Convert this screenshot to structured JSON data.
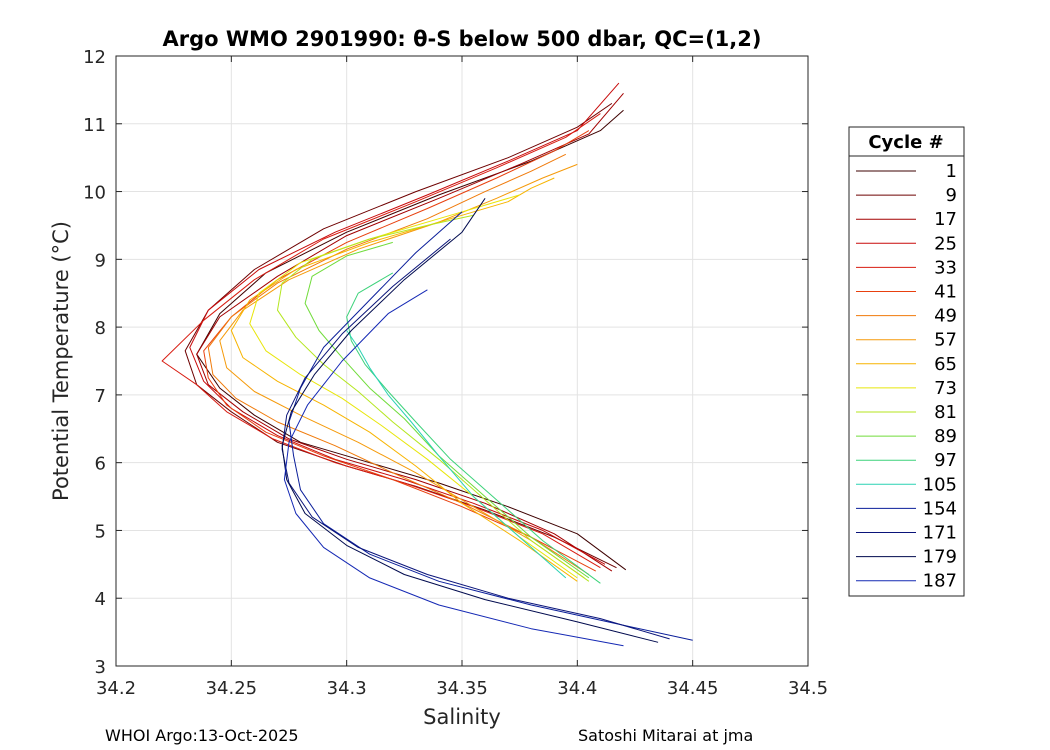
{
  "chart_data": {
    "type": "line",
    "title": "Argo WMO 2901990: θ-S below 500 dbar,  QC=(1,2)",
    "xlabel": "Salinity",
    "ylabel": "Potential Temperature (°C)",
    "xlim": [
      34.2,
      34.5
    ],
    "ylim": [
      3,
      12
    ],
    "xticks": [
      "34.2",
      "34.25",
      "34.3",
      "34.35",
      "34.4",
      "34.45",
      "34.5"
    ],
    "yticks": [
      "3",
      "4",
      "5",
      "6",
      "7",
      "8",
      "9",
      "10",
      "11",
      "12"
    ],
    "grid": true,
    "legend": {
      "title": "Cycle #",
      "placement": "outside-right",
      "entries": [
        "1",
        "9",
        "17",
        "25",
        "33",
        "41",
        "49",
        "57",
        "65",
        "73",
        "81",
        "89",
        "97",
        "105",
        "154",
        "171",
        "179",
        "187"
      ],
      "colors": [
        "#3d0000",
        "#6e0000",
        "#a30000",
        "#c80a0a",
        "#d81b10",
        "#e8400e",
        "#f07a0a",
        "#f59a0a",
        "#f7b400",
        "#e8e60a",
        "#b4e61e",
        "#70dc3a",
        "#3cd27a",
        "#2ad2b4",
        "#0a1e9a",
        "#0a147a",
        "#000a4e",
        "#1428b4"
      ]
    },
    "series": [
      {
        "name": "1",
        "salinity": [
          34.421,
          34.4,
          34.37,
          34.34,
          34.31,
          34.28,
          34.26,
          34.245,
          34.235,
          34.245,
          34.265,
          34.3,
          34.34,
          34.38,
          34.41,
          34.42
        ],
        "temperature": [
          4.42,
          4.95,
          5.35,
          5.7,
          6.0,
          6.3,
          6.7,
          7.1,
          7.6,
          8.2,
          8.8,
          9.4,
          9.95,
          10.45,
          10.9,
          11.2
        ]
      },
      {
        "name": "9",
        "salinity": [
          34.417,
          34.39,
          34.36,
          34.33,
          34.3,
          34.27,
          34.25,
          34.235,
          34.23,
          34.24,
          34.26,
          34.29,
          34.33,
          34.37,
          34.4,
          34.415
        ],
        "temperature": [
          4.45,
          4.9,
          5.3,
          5.65,
          5.95,
          6.3,
          6.75,
          7.15,
          7.65,
          8.25,
          8.85,
          9.45,
          10.0,
          10.5,
          10.95,
          11.3
        ]
      },
      {
        "name": "17",
        "salinity": [
          34.415,
          34.39,
          34.36,
          34.33,
          34.3,
          34.275,
          34.255,
          34.24,
          34.235,
          34.245,
          34.27,
          34.3,
          34.34,
          34.375,
          34.405,
          34.42
        ],
        "temperature": [
          4.4,
          4.95,
          5.4,
          5.75,
          6.05,
          6.35,
          6.75,
          7.15,
          7.6,
          8.15,
          8.75,
          9.35,
          9.9,
          10.4,
          10.85,
          11.45
        ]
      },
      {
        "name": "25",
        "salinity": [
          34.412,
          34.385,
          34.355,
          34.325,
          34.295,
          34.27,
          34.25,
          34.238,
          34.232,
          34.24,
          34.262,
          34.295,
          34.335,
          34.37,
          34.4,
          34.418
        ],
        "temperature": [
          4.5,
          5.0,
          5.4,
          5.75,
          6.05,
          6.4,
          6.8,
          7.2,
          7.7,
          8.25,
          8.85,
          9.4,
          9.95,
          10.45,
          10.9,
          11.6
        ]
      },
      {
        "name": "33",
        "salinity": [
          34.41,
          34.385,
          34.355,
          34.325,
          34.295,
          34.268,
          34.248,
          34.235,
          34.22,
          34.238,
          34.26,
          34.29,
          34.33,
          34.365,
          34.395,
          34.41
        ],
        "temperature": [
          4.45,
          4.95,
          5.35,
          5.7,
          6.0,
          6.35,
          6.75,
          7.15,
          7.5,
          8.1,
          8.7,
          9.3,
          9.85,
          10.35,
          10.8,
          11.15
        ]
      },
      {
        "name": "41",
        "salinity": [
          34.408,
          34.38,
          34.35,
          34.32,
          34.29,
          34.265,
          34.248,
          34.24,
          34.238,
          34.25,
          34.27,
          34.3,
          34.335,
          34.365,
          34.39,
          34.405
        ],
        "temperature": [
          4.4,
          4.9,
          5.35,
          5.75,
          6.1,
          6.45,
          6.85,
          7.25,
          7.65,
          8.15,
          8.7,
          9.25,
          9.75,
          10.2,
          10.6,
          10.9
        ]
      },
      {
        "name": "49",
        "salinity": [
          34.405,
          34.38,
          34.35,
          34.32,
          34.295,
          34.27,
          34.252,
          34.242,
          34.24,
          34.25,
          34.27,
          34.3,
          34.335,
          34.36,
          34.38,
          34.395
        ],
        "temperature": [
          4.35,
          4.9,
          5.4,
          5.85,
          6.25,
          6.6,
          6.95,
          7.3,
          7.7,
          8.15,
          8.65,
          9.15,
          9.6,
          10.0,
          10.3,
          10.55
        ]
      },
      {
        "name": "57",
        "salinity": [
          34.403,
          34.38,
          34.355,
          34.33,
          34.305,
          34.28,
          34.26,
          34.248,
          34.245,
          34.255,
          34.275,
          34.305,
          34.34,
          34.365,
          34.385,
          34.4
        ],
        "temperature": [
          4.3,
          4.85,
          5.35,
          5.85,
          6.3,
          6.7,
          7.05,
          7.4,
          7.8,
          8.25,
          8.7,
          9.15,
          9.55,
          9.9,
          10.2,
          10.4
        ]
      },
      {
        "name": "65",
        "salinity": [
          34.4,
          34.375,
          34.35,
          34.33,
          34.31,
          34.29,
          34.27,
          34.255,
          34.25,
          34.258,
          34.278,
          34.31,
          34.345,
          34.37,
          34.38,
          34.39
        ],
        "temperature": [
          4.25,
          4.85,
          5.4,
          5.95,
          6.45,
          6.85,
          7.2,
          7.55,
          7.95,
          8.4,
          8.85,
          9.25,
          9.6,
          9.85,
          10.05,
          10.2
        ]
      },
      {
        "name": "73",
        "salinity": [
          34.4,
          34.375,
          34.355,
          34.335,
          34.315,
          34.298,
          34.28,
          34.265,
          34.258,
          34.262,
          34.28,
          34.31,
          34.34,
          34.36,
          34.375
        ],
        "temperature": [
          4.3,
          4.9,
          5.5,
          6.05,
          6.55,
          6.95,
          7.3,
          7.65,
          8.05,
          8.5,
          8.95,
          9.3,
          9.6,
          9.8,
          9.95
        ]
      },
      {
        "name": "81",
        "salinity": [
          34.405,
          34.38,
          34.36,
          34.34,
          34.32,
          34.305,
          34.29,
          34.278,
          34.27,
          34.272,
          34.285,
          34.31,
          34.335,
          34.355
        ],
        "temperature": [
          4.25,
          4.85,
          5.45,
          6.05,
          6.6,
          7.05,
          7.45,
          7.85,
          8.25,
          8.65,
          9.0,
          9.3,
          9.5,
          9.65
        ]
      },
      {
        "name": "89",
        "salinity": [
          34.405,
          34.38,
          34.36,
          34.34,
          34.325,
          34.31,
          34.298,
          34.288,
          34.282,
          34.285,
          34.3,
          34.32
        ],
        "temperature": [
          4.3,
          4.9,
          5.5,
          6.1,
          6.65,
          7.1,
          7.55,
          7.95,
          8.35,
          8.75,
          9.05,
          9.25
        ]
      },
      {
        "name": "97",
        "salinity": [
          34.41,
          34.385,
          34.365,
          34.345,
          34.33,
          34.318,
          34.308,
          34.302,
          34.3,
          34.305,
          34.32
        ],
        "temperature": [
          4.22,
          4.85,
          5.45,
          6.05,
          6.6,
          7.05,
          7.45,
          7.8,
          8.15,
          8.5,
          8.8
        ]
      },
      {
        "name": "105",
        "salinity": [
          34.395,
          34.375,
          34.355,
          34.34,
          34.328,
          34.318,
          34.31,
          34.305,
          34.3
        ],
        "temperature": [
          4.3,
          4.9,
          5.5,
          6.1,
          6.6,
          7.0,
          7.4,
          7.7,
          7.95
        ]
      },
      {
        "name": "154",
        "salinity": [
          34.45,
          34.42,
          34.38,
          34.34,
          34.31,
          34.29,
          34.28,
          34.277,
          34.275,
          34.28,
          34.29,
          34.31,
          34.33,
          34.35
        ],
        "temperature": [
          3.38,
          3.6,
          3.9,
          4.25,
          4.65,
          5.1,
          5.6,
          6.1,
          6.6,
          7.1,
          7.7,
          8.4,
          9.1,
          9.7
        ]
      },
      {
        "name": "171",
        "salinity": [
          34.44,
          34.41,
          34.37,
          34.335,
          34.305,
          34.285,
          34.275,
          34.272,
          34.274,
          34.282,
          34.298,
          34.32,
          34.345
        ],
        "temperature": [
          3.4,
          3.7,
          4.0,
          4.35,
          4.75,
          5.2,
          5.7,
          6.2,
          6.7,
          7.25,
          7.9,
          8.6,
          9.3
        ]
      },
      {
        "name": "179",
        "salinity": [
          34.435,
          34.4,
          34.36,
          34.325,
          34.3,
          34.282,
          34.274,
          34.272,
          34.276,
          34.286,
          34.302,
          34.325,
          34.35,
          34.36
        ],
        "temperature": [
          3.35,
          3.65,
          3.98,
          4.35,
          4.78,
          5.25,
          5.75,
          6.25,
          6.75,
          7.3,
          7.95,
          8.7,
          9.4,
          9.9
        ]
      },
      {
        "name": "187",
        "salinity": [
          34.42,
          34.38,
          34.34,
          34.31,
          34.29,
          34.278,
          34.273,
          34.275,
          34.283,
          34.298,
          34.318,
          34.335
        ],
        "temperature": [
          3.3,
          3.55,
          3.9,
          4.3,
          4.75,
          5.25,
          5.75,
          6.3,
          6.85,
          7.5,
          8.2,
          8.55
        ]
      }
    ]
  },
  "footer": {
    "left": "WHOI Argo:13-Oct-2025",
    "right": "Satoshi Mitarai at jma"
  }
}
